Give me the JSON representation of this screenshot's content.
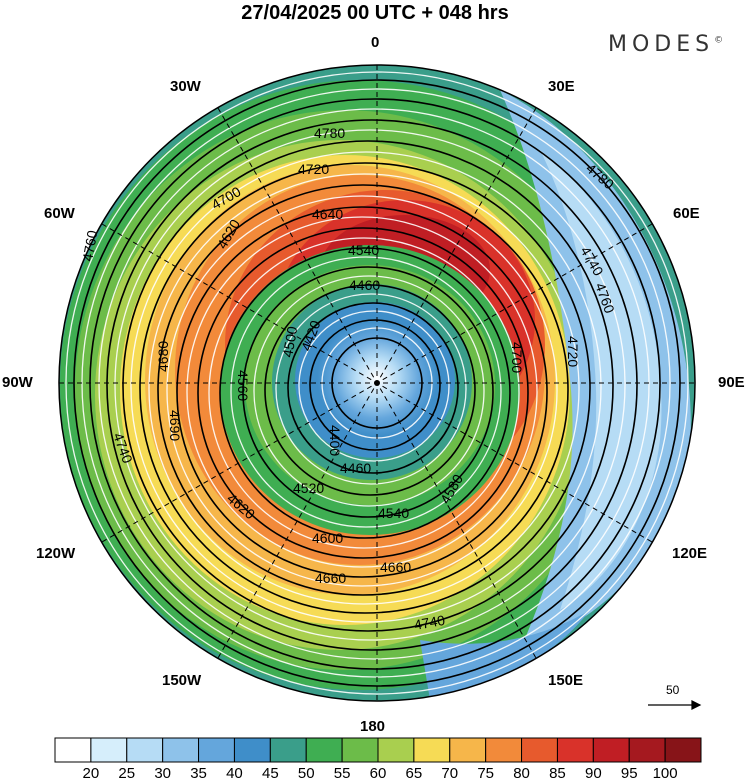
{
  "title": "27/04/2025  00 UTC  + 048 hrs",
  "brand": "MODES",
  "brand_mark": "©",
  "longitude_labels": {
    "n": "0",
    "s": "180",
    "e": "90E",
    "w": "90W",
    "ne": "30E",
    "nw": "30W",
    "ene": "60E",
    "wnw": "60W",
    "ese": "120E",
    "wsw": "120W",
    "se": "150E",
    "sw": "150W"
  },
  "map": {
    "projection": "south polar stereographic",
    "shading": "wind speed",
    "contour_variable": "geopotential height",
    "contour_labels": [
      "4780",
      "4720",
      "4640",
      "4700",
      "4540",
      "4460",
      "4420",
      "4400",
      "4500",
      "4560",
      "4620",
      "4680",
      "4690",
      "4760",
      "4740",
      "4620",
      "4660",
      "4600",
      "4580",
      "4540",
      "4520",
      "4460",
      "4660",
      "4700",
      "4720",
      "4740",
      "4760",
      "4780",
      "4740"
    ]
  },
  "vector_reference": {
    "label": "50"
  },
  "colorbar": {
    "labels": [
      "20",
      "25",
      "30",
      "35",
      "40",
      "45",
      "50",
      "55",
      "60",
      "65",
      "70",
      "75",
      "80",
      "85",
      "90",
      "95",
      "100"
    ],
    "colors": [
      "#ffffff",
      "#d6eefb",
      "#b6dcf5",
      "#8ec2ea",
      "#64a6dc",
      "#3f8ec9",
      "#3a9e8a",
      "#3fae52",
      "#6cbc49",
      "#a9cf4f",
      "#f6db55",
      "#f6b64a",
      "#f28a3a",
      "#e75a2d",
      "#d9322a",
      "#c01e24",
      "#a5191f",
      "#871418"
    ]
  }
}
